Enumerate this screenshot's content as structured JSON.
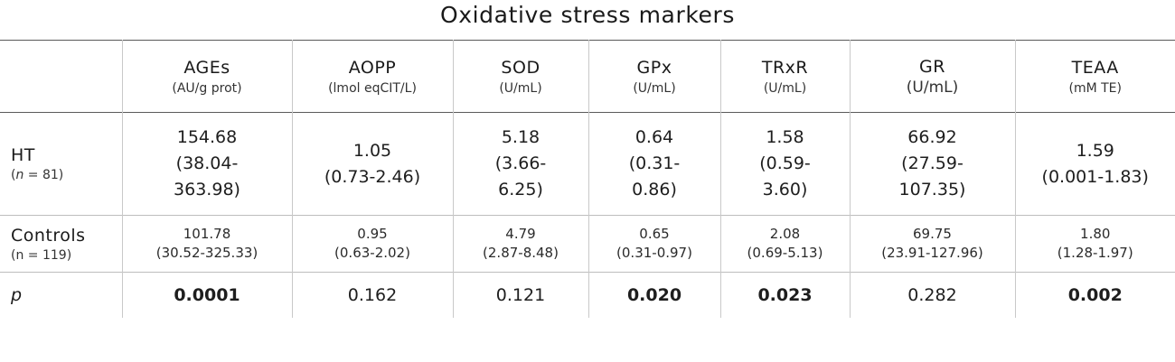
{
  "title": "Oxidative stress markers",
  "columns": [
    {
      "name": "AGEs",
      "unit": "(AU/g prot)"
    },
    {
      "name": "AOPP",
      "unit": "(lmol eqCIT/L)"
    },
    {
      "name": "SOD",
      "unit": "(U/mL)"
    },
    {
      "name": "GPx",
      "unit": "(U/mL)"
    },
    {
      "name": "TRxR",
      "unit": "(U/mL)"
    },
    {
      "name": "GR",
      "unit": "(U/mL)"
    },
    {
      "name": "TEAA",
      "unit": "(mM TE)"
    }
  ],
  "rows": {
    "ht": {
      "label": "HT",
      "n_prefix": "n",
      "n_suffix": " = 81)",
      "cells": [
        [
          "154.68",
          "(38.04-",
          "363.98)"
        ],
        [
          "1.05",
          "(0.73-2.46)"
        ],
        [
          "5.18",
          "(3.66-",
          "6.25)"
        ],
        [
          "0.64",
          "(0.31-",
          "0.86)"
        ],
        [
          "1.58",
          "(0.59-",
          "3.60)"
        ],
        [
          "66.92",
          "(27.59-",
          "107.35)"
        ],
        [
          "1.59",
          "(0.001-1.83)"
        ]
      ]
    },
    "controls": {
      "label": "Controls",
      "n": "(n = 119)",
      "cells": [
        [
          "101.78",
          "(30.52-325.33)"
        ],
        [
          "0.95",
          "(0.63-2.02)"
        ],
        [
          "4.79",
          "(2.87-8.48)"
        ],
        [
          "0.65",
          "(0.31-0.97)"
        ],
        [
          "2.08",
          "(0.69-5.13)"
        ],
        [
          "69.75",
          "(23.91-127.96)"
        ],
        [
          "1.80",
          "(1.28-1.97)"
        ]
      ]
    },
    "p": {
      "label": "p",
      "values": [
        "0.0001",
        "0.162",
        "0.121",
        "0.020",
        "0.023",
        "0.282",
        "0.002"
      ],
      "bold": [
        true,
        false,
        false,
        true,
        true,
        false,
        true
      ]
    }
  }
}
